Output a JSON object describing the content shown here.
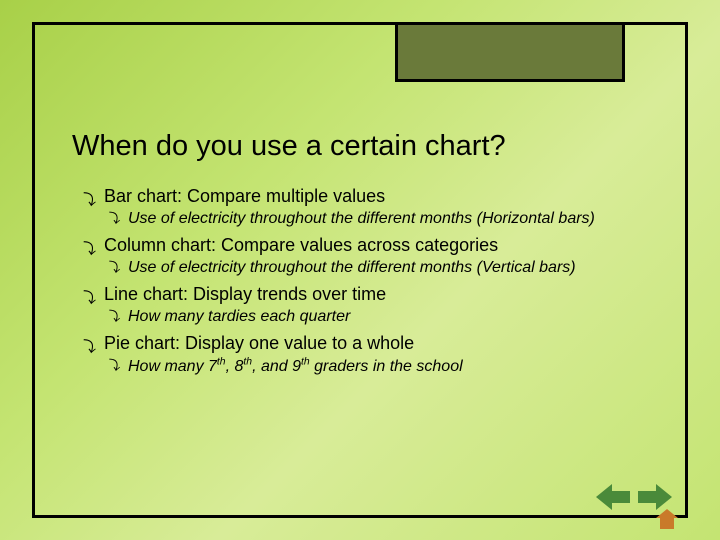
{
  "title": "When do you use a certain chart?",
  "items": [
    {
      "label": "Bar chart:  Compare multiple values",
      "sub": "Use of electricity throughout the different months (Horizontal bars)"
    },
    {
      "label": "Column chart:  Compare values across categories",
      "sub": "Use of electricity throughout the different months (Vertical bars)"
    },
    {
      "label": "Line chart:  Display trends over time",
      "sub": "How many tardies each quarter"
    },
    {
      "label": "Pie chart:  Display one value to a whole",
      "sub_html": "How many 7<sup>th</sup>, 8<sup>th</sup>, and 9<sup>th</sup> graders in the school"
    }
  ],
  "colors": {
    "frame": "#000000",
    "header_block": "#6a7a3a",
    "nav_arrow": "#4a8a3a",
    "home": "#c97a2a"
  }
}
